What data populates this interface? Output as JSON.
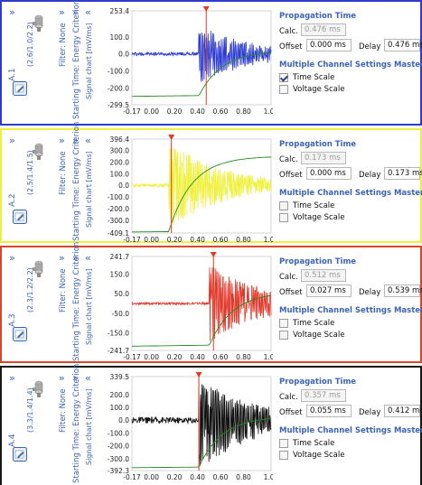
{
  "ui": {
    "expand_glyph": "»",
    "collapse_glyph": "«",
    "calc_label": "Calc.",
    "offset_label": "Offset",
    "delay_label": "Delay",
    "propagation_header": "Propagation Time",
    "master_header": "Multiple Channel Settings Master",
    "time_scale_label": "Time Scale",
    "voltage_scale_label": "Voltage Scale",
    "signal_chart_label": "Signal chart [mV/ms]"
  },
  "colors": {
    "panel_borders": [
      "#2d3bd0",
      "#eef040",
      "#d8472c",
      "#181818"
    ],
    "signal_colors": [
      "#2d3bd0",
      "#eef03a",
      "#e0382a",
      "#111111"
    ],
    "energy_curve": "#228b22",
    "marker": "#e23a1f",
    "accent": "#3c64b4"
  },
  "panels": [
    {
      "channel": "A.1",
      "position": "(2.6/1.0/2.2)",
      "filter": "Filter: None",
      "starting_time": "Starting Time: Energy Criterion",
      "calc": "0.476 ms",
      "offset": "0.000 ms",
      "delay": "0.476 ms",
      "time_scale_checked": true,
      "voltage_scale_checked": false,
      "chart_data": {
        "type": "line",
        "x_tick_labels": [
          "-0.17",
          "0.00",
          "0.20",
          "0.40",
          "0.60",
          "0.80",
          "1.04"
        ],
        "y_tick_labels": [
          "253.4",
          "100.0",
          "0.0",
          "-100.0",
          "-200.0",
          "-299.5"
        ],
        "xlim": [
          -0.17,
          1.04
        ],
        "ylim": [
          -299.5,
          253.4
        ],
        "marker_time": 0.476,
        "onset": 0.41,
        "amplitude_pos": 160,
        "amplitude_neg": -170,
        "energy_start": -250,
        "energy_end": 20,
        "noise": 10
      }
    },
    {
      "channel": "A.2",
      "position": "(2.5/1.4/1.5)",
      "filter": "Filter: None",
      "starting_time": "Starting Time: Energy Criterion",
      "calc": "0.173 ms",
      "offset": "0.000 ms",
      "delay": "0.173 ms",
      "time_scale_checked": false,
      "voltage_scale_checked": false,
      "chart_data": {
        "type": "line",
        "x_tick_labels": [
          "-0.17",
          "0.00",
          "0.20",
          "0.40",
          "0.60",
          "0.80",
          "1.04"
        ],
        "y_tick_labels": [
          "396.4",
          "300.0",
          "200.0",
          "100.0",
          "0.0",
          "-100.0",
          "-200.0",
          "-300.0",
          "-409.1"
        ],
        "xlim": [
          -0.17,
          1.04
        ],
        "ylim": [
          -409.1,
          396.4
        ],
        "marker_time": 0.173,
        "onset": 0.15,
        "amplitude_pos": 370,
        "amplitude_neg": -380,
        "energy_start": -400,
        "energy_end": 250,
        "noise": 15
      }
    },
    {
      "channel": "A.3",
      "position": "(2.3/1.2/2.2)",
      "filter": "Filter: None",
      "starting_time": "Starting Time: Energy Criterion",
      "calc": "0.512 ms",
      "offset": "0.027 ms",
      "delay": "0.539 ms",
      "time_scale_checked": false,
      "voltage_scale_checked": false,
      "chart_data": {
        "type": "line",
        "x_tick_labels": [
          "-0.17",
          "0.00",
          "0.20",
          "0.40",
          "0.60",
          "0.80",
          "1.04"
        ],
        "y_tick_labels": [
          "241.7",
          "150.0",
          "50.0",
          "-50.0",
          "-150.0",
          "-241.7"
        ],
        "xlim": [
          -0.17,
          1.04
        ],
        "ylim": [
          -241.7,
          241.7
        ],
        "marker_time": 0.539,
        "onset": 0.5,
        "amplitude_pos": 200,
        "amplitude_neg": -200,
        "energy_start": -220,
        "energy_end": 60,
        "noise": 6
      }
    },
    {
      "channel": "A.4",
      "position": "(3.3/1.4/1.4)",
      "filter": "Filter: None",
      "starting_time": "Starting Time: Energy Criterion",
      "calc": "0.357 ms",
      "offset": "0.055 ms",
      "delay": "0.412 ms",
      "time_scale_checked": false,
      "voltage_scale_checked": false,
      "chart_data": {
        "type": "line",
        "x_tick_labels": [
          "-0.17",
          "0.00",
          "0.20",
          "0.40",
          "0.60",
          "0.80",
          "1.04"
        ],
        "y_tick_labels": [
          "339.5",
          "200.0",
          "100.0",
          "0.0",
          "-100.0",
          "-200.0",
          "-300.0",
          "-392.3"
        ],
        "xlim": [
          -0.17,
          1.04
        ],
        "ylim": [
          -392.3,
          339.5
        ],
        "marker_time": 0.412,
        "onset": 0.41,
        "amplitude_pos": 320,
        "amplitude_neg": -380,
        "energy_start": -370,
        "energy_end": 30,
        "noise": 25
      }
    }
  ]
}
